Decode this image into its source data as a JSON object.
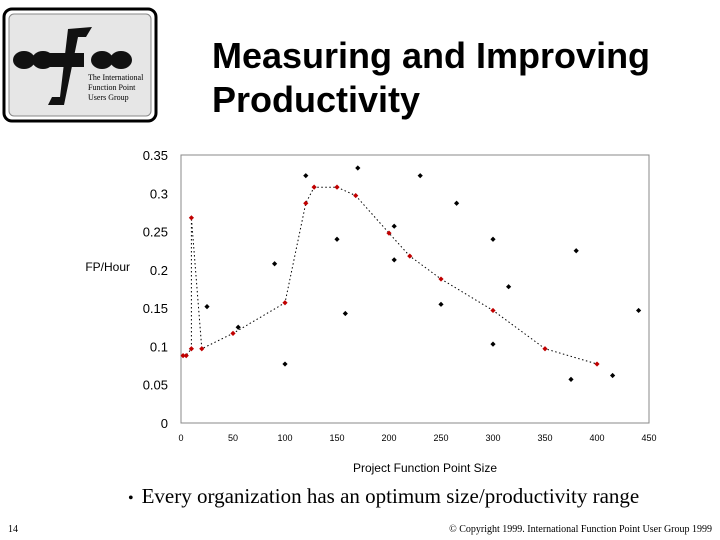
{
  "logo": {
    "text_lines": [
      "The International",
      "Function Point",
      "Users Group"
    ]
  },
  "title_lines": [
    "Measuring and Improving",
    "Productivity"
  ],
  "bullet": "Every organization has an optimum size/productivity range",
  "footer": {
    "page_number": "14",
    "copyright": "© Copyright 1999. International Function Point User Group 1999"
  },
  "chart_data": {
    "type": "scatter",
    "title": "",
    "xlabel": "Project Function Point Size",
    "ylabel": "FP/Hour",
    "xlim": [
      0,
      450
    ],
    "ylim": [
      0,
      0.35
    ],
    "x_ticks": [
      "0",
      "50",
      "100",
      "150",
      "200",
      "250",
      "300",
      "350",
      "400",
      "450"
    ],
    "y_ticks": [
      "0",
      "0.05",
      "0.1",
      "0.15",
      "0.2",
      "0.25",
      "0.3",
      "0.35"
    ],
    "grid": false,
    "legend": "none",
    "series": [
      {
        "color": "#000000",
        "style": "markers",
        "points": [
          [
            25,
            0.152
          ],
          [
            55,
            0.125
          ],
          [
            90,
            0.208
          ],
          [
            100,
            0.077
          ],
          [
            120,
            0.323
          ],
          [
            150,
            0.24
          ],
          [
            158,
            0.143
          ],
          [
            170,
            0.333
          ],
          [
            205,
            0.257
          ],
          [
            205,
            0.213
          ],
          [
            230,
            0.323
          ],
          [
            250,
            0.155
          ],
          [
            265,
            0.287
          ],
          [
            300,
            0.24
          ],
          [
            300,
            0.103
          ],
          [
            315,
            0.178
          ],
          [
            375,
            0.057
          ],
          [
            380,
            0.225
          ],
          [
            415,
            0.062
          ],
          [
            440,
            0.147
          ]
        ]
      },
      {
        "color": "#c00000",
        "style": "markers-with-dotted-trend",
        "points": [
          [
            2,
            0.088
          ],
          [
            5,
            0.088
          ],
          [
            10,
            0.268
          ],
          [
            10,
            0.097
          ],
          [
            20,
            0.097
          ],
          [
            50,
            0.117
          ],
          [
            100,
            0.157
          ],
          [
            120,
            0.287
          ],
          [
            128,
            0.308
          ],
          [
            150,
            0.308
          ],
          [
            168,
            0.297
          ],
          [
            200,
            0.248
          ],
          [
            220,
            0.218
          ],
          [
            250,
            0.188
          ],
          [
            300,
            0.147
          ],
          [
            350,
            0.097
          ],
          [
            400,
            0.077
          ]
        ]
      }
    ]
  }
}
